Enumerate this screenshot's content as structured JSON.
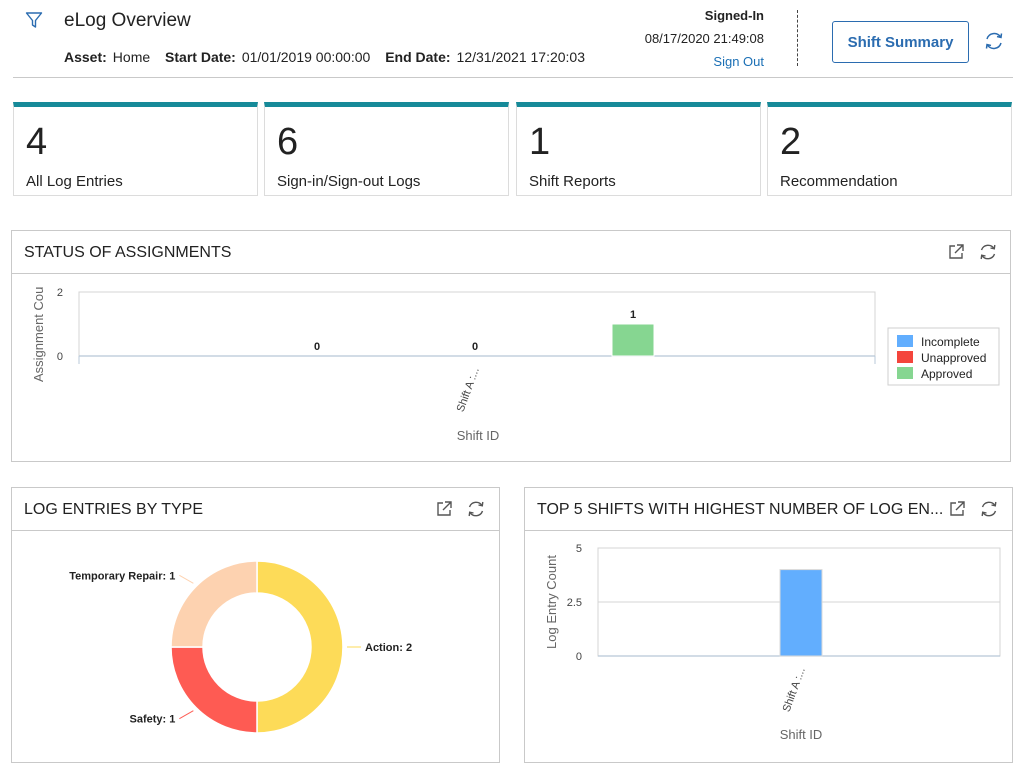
{
  "header": {
    "title": "eLog Overview",
    "asset_label": "Asset:",
    "asset_value": "Home",
    "start_label": "Start Date:",
    "start_value": "01/01/2019 00:00:00",
    "end_label": "End Date:",
    "end_value": "12/31/2021 17:20:03",
    "signed_in_label": "Signed-In",
    "signed_in_time": "08/17/2020 21:49:08",
    "sign_out": "Sign Out",
    "shift_summary_button": "Shift Summary"
  },
  "kpis": [
    {
      "value": "4",
      "label": "All Log Entries"
    },
    {
      "value": "6",
      "label": "Sign-in/Sign-out Logs"
    },
    {
      "value": "1",
      "label": "Shift Reports"
    },
    {
      "value": "2",
      "label": "Recommendation"
    }
  ],
  "panels": {
    "status": {
      "title": "STATUS OF ASSIGNMENTS"
    },
    "types": {
      "title": "LOG ENTRIES BY TYPE"
    },
    "top5": {
      "title": "TOP 5 SHIFTS WITH HIGHEST NUMBER OF LOG EN..."
    }
  },
  "colors": {
    "accent": "#168a99",
    "incomplete": "#62aefe",
    "unapproved": "#f4453c",
    "approved": "#86d691",
    "action": "#fddb58",
    "safety": "#fe5b53",
    "temporary_repair": "#fdd2b0"
  },
  "chart_data": [
    {
      "type": "bar",
      "title": "STATUS OF ASSIGNMENTS",
      "xlabel": "Shift ID",
      "ylabel": "Assignment Cou",
      "categories": [
        "Shift A :..."
      ],
      "series": [
        {
          "name": "Incomplete",
          "values": [
            0
          ]
        },
        {
          "name": "Unapproved",
          "values": [
            0
          ]
        },
        {
          "name": "Approved",
          "values": [
            1
          ]
        }
      ],
      "yticks": [
        0,
        2
      ],
      "ylim": [
        0,
        2
      ],
      "legend": "right",
      "grid": false
    },
    {
      "type": "pie",
      "title": "LOG ENTRIES BY TYPE",
      "donut": true,
      "slices": [
        {
          "label": "Action",
          "value": 2,
          "text": "Action: 2"
        },
        {
          "label": "Safety",
          "value": 1,
          "text": "Safety: 1"
        },
        {
          "label": "Temporary Repair",
          "value": 1,
          "text": "Temporary Repair: 1"
        }
      ]
    },
    {
      "type": "bar",
      "title": "TOP 5 SHIFTS WITH HIGHEST NUMBER OF LOG EN...",
      "xlabel": "Shift ID",
      "ylabel": "Log Entry Count",
      "categories": [
        "Shift A :..."
      ],
      "values": [
        4
      ],
      "yticks": [
        0,
        2.5,
        5
      ],
      "ylim": [
        0,
        5
      ],
      "grid": true
    }
  ]
}
